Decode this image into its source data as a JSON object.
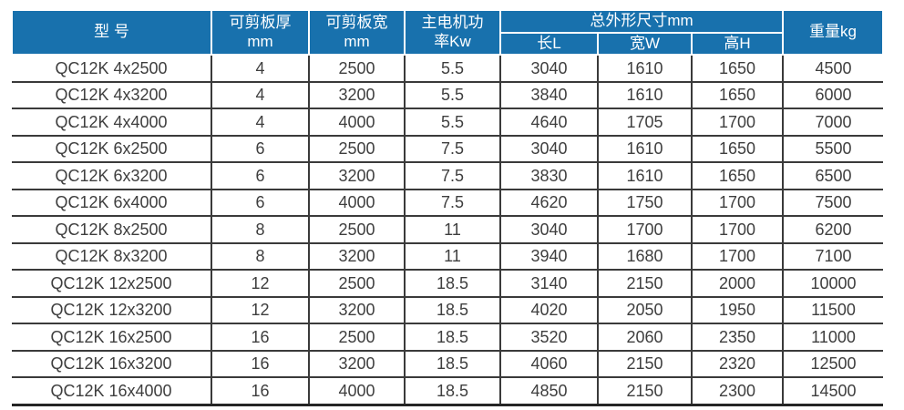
{
  "colors": {
    "header_bg": "#1871ad",
    "header_text": "#ffffff",
    "grid_line": "#3a3a3a",
    "body_text": "#3e3e3e"
  },
  "header": {
    "model": "型 号",
    "thickness_line1": "可剪板厚",
    "thickness_line2": "mm",
    "cut_width_line1": "可剪板宽",
    "cut_width_line2": "mm",
    "power_line1": "主电机功",
    "power_line2": "率Kw",
    "dims_group": "总外形尺寸mm",
    "dim_length": "长L",
    "dim_width": "宽W",
    "dim_height": "高H",
    "weight": "重量kg"
  },
  "rows": [
    {
      "model": "QC12K 4x2500",
      "thickness": "4",
      "width": "2500",
      "power": "5.5",
      "length": "3040",
      "wide": "1610",
      "height": "1650",
      "weight": "4500"
    },
    {
      "model": "QC12K 4x3200",
      "thickness": "4",
      "width": "3200",
      "power": "5.5",
      "length": "3840",
      "wide": "1610",
      "height": "1650",
      "weight": "6000"
    },
    {
      "model": "QC12K 4x4000",
      "thickness": "4",
      "width": "4000",
      "power": "5.5",
      "length": "4640",
      "wide": "1705",
      "height": "1700",
      "weight": "7000"
    },
    {
      "model": "QC12K 6x2500",
      "thickness": "6",
      "width": "2500",
      "power": "7.5",
      "length": "3040",
      "wide": "1610",
      "height": "1650",
      "weight": "5500"
    },
    {
      "model": "QC12K 6x3200",
      "thickness": "6",
      "width": "3200",
      "power": "7.5",
      "length": "3830",
      "wide": "1610",
      "height": "1650",
      "weight": "6500"
    },
    {
      "model": "QC12K 6x4000",
      "thickness": "6",
      "width": "4000",
      "power": "7.5",
      "length": "4620",
      "wide": "1750",
      "height": "1700",
      "weight": "7500"
    },
    {
      "model": "QC12K 8x2500",
      "thickness": "8",
      "width": "2500",
      "power": "11",
      "length": "3040",
      "wide": "1700",
      "height": "1700",
      "weight": "6200"
    },
    {
      "model": "QC12K 8x3200",
      "thickness": "8",
      "width": "3200",
      "power": "11",
      "length": "3940",
      "wide": "1680",
      "height": "1700",
      "weight": "7100"
    },
    {
      "model": "QC12K 12x2500",
      "thickness": "12",
      "width": "2500",
      "power": "18.5",
      "length": "3140",
      "wide": "2150",
      "height": "2000",
      "weight": "10000"
    },
    {
      "model": "QC12K 12x3200",
      "thickness": "12",
      "width": "3200",
      "power": "18.5",
      "length": "4020",
      "wide": "2050",
      "height": "1950",
      "weight": "11500"
    },
    {
      "model": "QC12K 16x2500",
      "thickness": "16",
      "width": "2500",
      "power": "18.5",
      "length": "3520",
      "wide": "2060",
      "height": "2350",
      "weight": "11000"
    },
    {
      "model": "QC12K 16x3200",
      "thickness": "16",
      "width": "3200",
      "power": "18.5",
      "length": "4060",
      "wide": "2150",
      "height": "2320",
      "weight": "12500"
    },
    {
      "model": "QC12K 16x4000",
      "thickness": "16",
      "width": "4000",
      "power": "18.5",
      "length": "4850",
      "wide": "2150",
      "height": "2300",
      "weight": "14500"
    }
  ]
}
